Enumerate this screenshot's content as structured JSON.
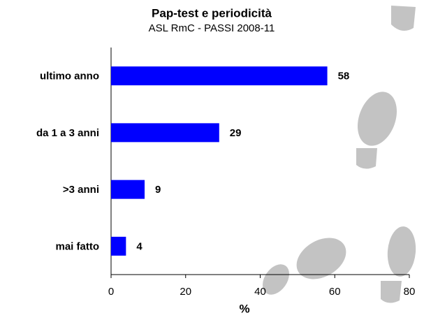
{
  "chart_data": {
    "type": "bar",
    "orientation": "horizontal",
    "title": "Pap-test e periodicità",
    "subtitle": "ASL RmC - PASSI 2008-11",
    "categories": [
      "ultimo anno",
      "da 1 a 3 anni",
      ">3 anni",
      "mai fatto"
    ],
    "values": [
      58,
      29,
      9,
      4
    ],
    "color": "#0000ff",
    "xlim": [
      0,
      80
    ],
    "xticks": [
      0,
      20,
      40,
      60,
      80
    ],
    "xlabel": "%"
  }
}
